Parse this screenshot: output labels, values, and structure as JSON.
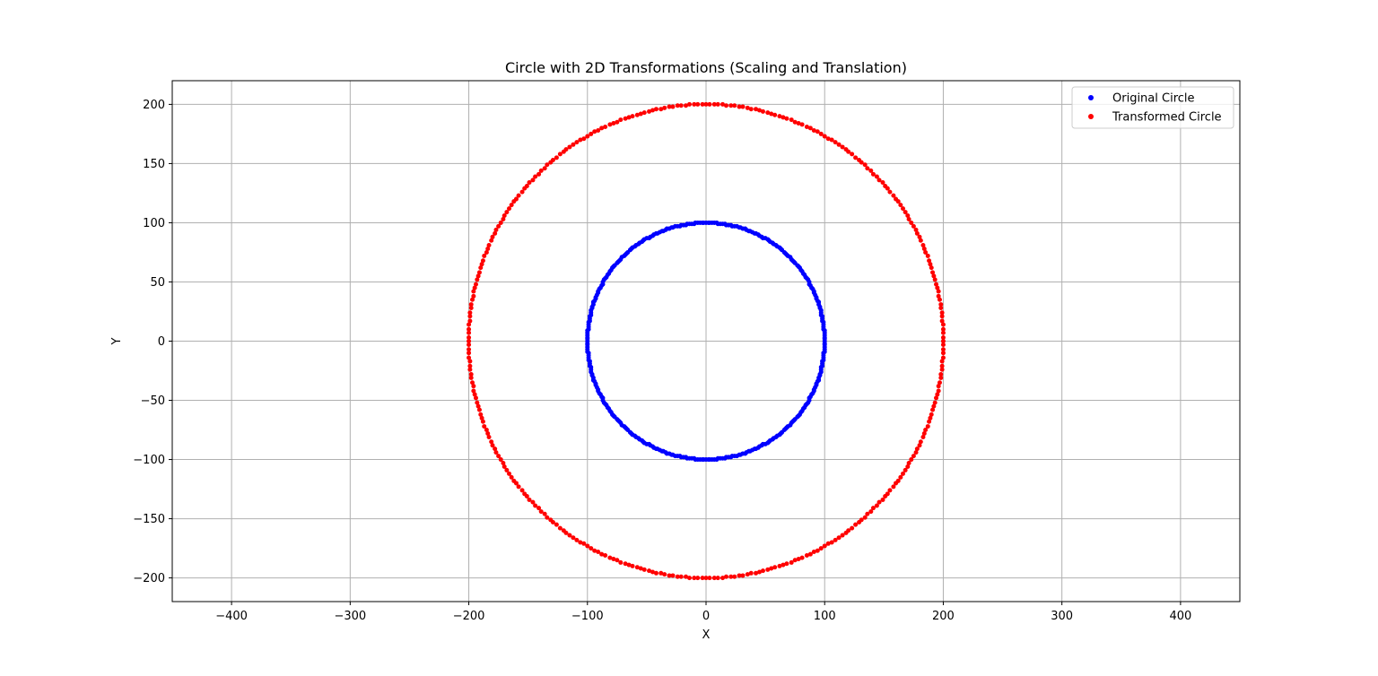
{
  "chart_data": {
    "type": "scatter",
    "title": "Circle with 2D Transformations (Scaling and Translation)",
    "xlabel": "X",
    "ylabel": "Y",
    "xlim": [
      -450,
      450
    ],
    "ylim": [
      -220,
      220
    ],
    "grid": true,
    "legend_position": "top-right",
    "x_ticks": [
      -400,
      -300,
      -200,
      -100,
      0,
      100,
      200,
      300,
      400
    ],
    "x_tick_labels": [
      "−400",
      "−300",
      "−200",
      "−100",
      "0",
      "100",
      "200",
      "300",
      "400"
    ],
    "y_ticks": [
      -200,
      -150,
      -100,
      -50,
      0,
      50,
      100,
      150,
      200
    ],
    "y_tick_labels": [
      "−200",
      "−150",
      "−100",
      "−50",
      "0",
      "50",
      "100",
      "150",
      "200"
    ],
    "series": [
      {
        "name": "Original Circle",
        "color": "#0000ff",
        "shape": "circle",
        "center": [
          0,
          0
        ],
        "radius": 100,
        "point_count": 360
      },
      {
        "name": "Transformed Circle",
        "color": "#ff0000",
        "shape": "circle",
        "center": [
          0,
          0
        ],
        "radius": 200,
        "point_count": 360
      }
    ]
  }
}
